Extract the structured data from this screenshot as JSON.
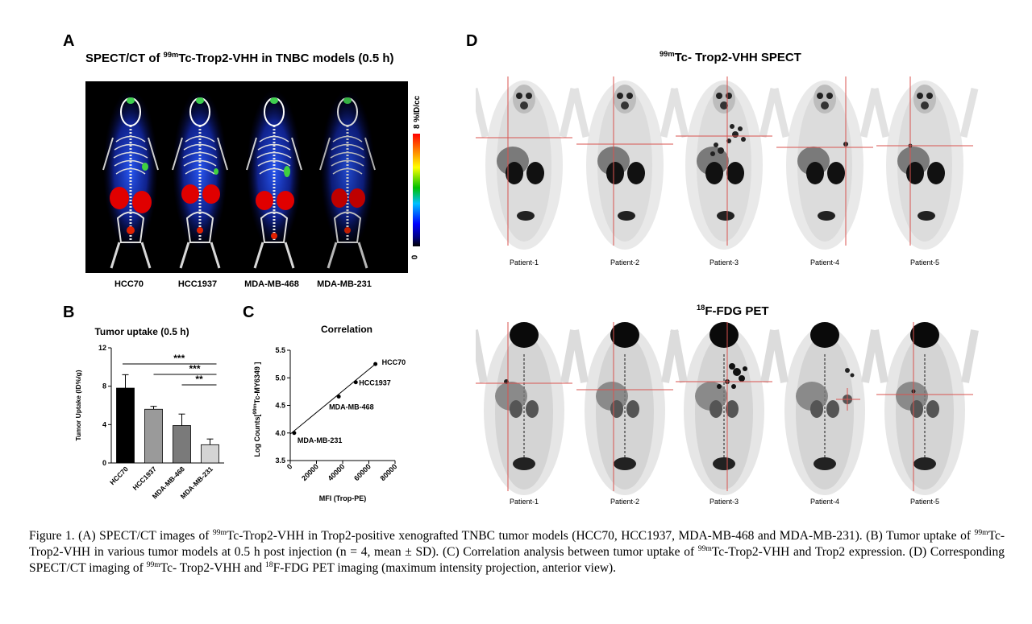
{
  "panelA": {
    "letter": "A",
    "title_prefix": "SPECT/CT of ",
    "title_sup": "99m",
    "title_suffix": "Tc-Trop2-VHH in TNBC models (0.5 h)",
    "scale_max": "8 %ID/cc",
    "scale_min": "0",
    "models": [
      "HCC70",
      "HCC1937",
      "MDA-MB-468",
      "MDA-MB-231"
    ]
  },
  "panelB": {
    "letter": "B"
  },
  "panelC": {
    "letter": "C"
  },
  "panelD": {
    "letter": "D",
    "spect_title_sup": "99m",
    "spect_title_suffix": "Tc- Trop2-VHH SPECT",
    "pet_title_sup": "18",
    "pet_title_suffix": "F-FDG PET",
    "patients": [
      "Patient-1",
      "Patient-2",
      "Patient-3",
      "Patient-4",
      "Patient-5"
    ]
  },
  "chart_data": [
    {
      "type": "bar",
      "title": "Tumor uptake (0.5 h)",
      "ylabel": "Tumor Uptake (ID%/g)",
      "categories": [
        "HCC70",
        "HCC1937",
        "MDA-MB-468",
        "MDA-MB-231"
      ],
      "values": [
        7.8,
        5.6,
        3.9,
        1.9
      ],
      "errors": [
        1.4,
        0.3,
        1.2,
        0.6
      ],
      "colors": [
        "#000000",
        "#9a9a9a",
        "#7a7a7a",
        "#d4d4d4"
      ],
      "ylim": [
        0,
        12
      ],
      "yticks": [
        "0",
        "4",
        "8",
        "12"
      ],
      "significance": [
        {
          "from": 0,
          "to": 3,
          "label": "***"
        },
        {
          "from": 1,
          "to": 3,
          "label": "***"
        },
        {
          "from": 2,
          "to": 3,
          "label": "**"
        }
      ]
    },
    {
      "type": "scatter",
      "title": "Correlation",
      "xlabel": "MFI (Trop-PE)",
      "ylabel_prefix": "Log Counts[",
      "ylabel_sup": "99m",
      "ylabel_suffix": "Tc-MY6349 ]",
      "xlim": [
        0,
        80000
      ],
      "ylim": [
        3.5,
        5.5
      ],
      "xticks": [
        "0",
        "20000",
        "40000",
        "60000",
        "80000"
      ],
      "yticks": [
        "3.5",
        "4.0",
        "4.5",
        "5.0",
        "5.5"
      ],
      "points": [
        {
          "label": "HCC70",
          "x": 65000,
          "y": 5.25
        },
        {
          "label": "HCC1937",
          "x": 50000,
          "y": 4.92
        },
        {
          "label": "MDA-MB-468",
          "x": 37000,
          "y": 4.66
        },
        {
          "label": "MDA-MB-231",
          "x": 3000,
          "y": 4.0
        }
      ],
      "fit_line": [
        {
          "x": 0,
          "y": 3.98
        },
        {
          "x": 65000,
          "y": 5.25
        }
      ]
    }
  ],
  "caption": {
    "p1": "Figure 1. (A) SPECT/CT images of ",
    "s1": "99m",
    "p2": "Tc-Trop2-VHH in Trop2-positive xenografted TNBC tumor models (HCC70, HCC1937, MDA-MB-468 and MDA-MB-231). (B) Tumor uptake of ",
    "s2": "99m",
    "p3": "Tc-Trop2-VHH in various tumor models at 0.5 h post injection (n = 4, mean ± SD). (C) Correlation analysis between tumor uptake of ",
    "s3": "99m",
    "p4": "Tc-Trop2-VHH and Trop2 expression. (D) Corresponding SPECT/CT imaging of ",
    "s4": "99m",
    "p5": "Tc- Trop2-VHH and ",
    "s5": "18",
    "p6": "F-FDG PET imaging (maximum intensity projection, anterior view)."
  },
  "colors": {
    "scale_top": "#ff0000",
    "scale_bottom": "#000000",
    "crosshair": "#d9534f"
  }
}
